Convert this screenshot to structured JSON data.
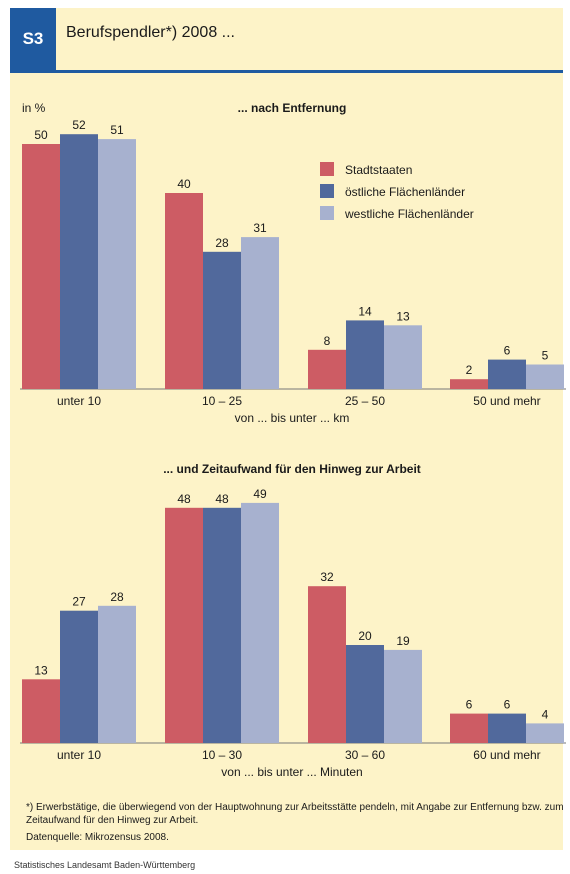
{
  "header": {
    "badge": "S3",
    "title": "Berufspendler*) 2008 ..."
  },
  "colors": {
    "stadt": "#cd5c64",
    "ost": "#51699c",
    "west": "#a7b1cf",
    "panel": "#fdf3c8",
    "header_rule": "#1f5aa0"
  },
  "legend": [
    "Stadtstaaten",
    "östliche Flächenländer",
    "westliche Flächenländer"
  ],
  "footnote": "*) Erwerbstätige, die überwiegend von der Hauptwohnung zur Arbeitsstätte pendeln, mit Angabe zur Entfernung bzw. zum Zeitaufwand für den Hinweg zur Arbeit.",
  "source": "Datenquelle: Mikrozensus 2008.",
  "publisher": "Statistisches Landesamt Baden-Württemberg",
  "chart_data": [
    {
      "type": "bar",
      "title": "... nach Entfernung",
      "ylabel": "in %",
      "xlabel": "von ... bis unter ... km",
      "categories": [
        "unter 10",
        "10 – 25",
        "25 – 50",
        "50 und mehr"
      ],
      "series": [
        {
          "name": "Stadtstaaten",
          "values": [
            50,
            40,
            8,
            2
          ]
        },
        {
          "name": "östliche Flächenländer",
          "values": [
            52,
            28,
            14,
            6
          ]
        },
        {
          "name": "westliche Flächenländer",
          "values": [
            51,
            31,
            13,
            5
          ]
        }
      ],
      "legend_position": "top-right",
      "grid": false,
      "ylim": [
        0,
        55
      ]
    },
    {
      "type": "bar",
      "title": "... und Zeitaufwand für den Hinweg zur Arbeit",
      "xlabel": "von ... bis unter ... Minuten",
      "categories": [
        "unter 10",
        "10 – 30",
        "30 – 60",
        "60 und mehr"
      ],
      "series": [
        {
          "name": "Stadtstaaten",
          "values": [
            13,
            48,
            32,
            6
          ]
        },
        {
          "name": "östliche Flächenländer",
          "values": [
            27,
            48,
            20,
            6
          ]
        },
        {
          "name": "westliche Flächenländer",
          "values": [
            28,
            49,
            19,
            4
          ]
        }
      ],
      "grid": false,
      "ylim": [
        0,
        55
      ]
    }
  ]
}
